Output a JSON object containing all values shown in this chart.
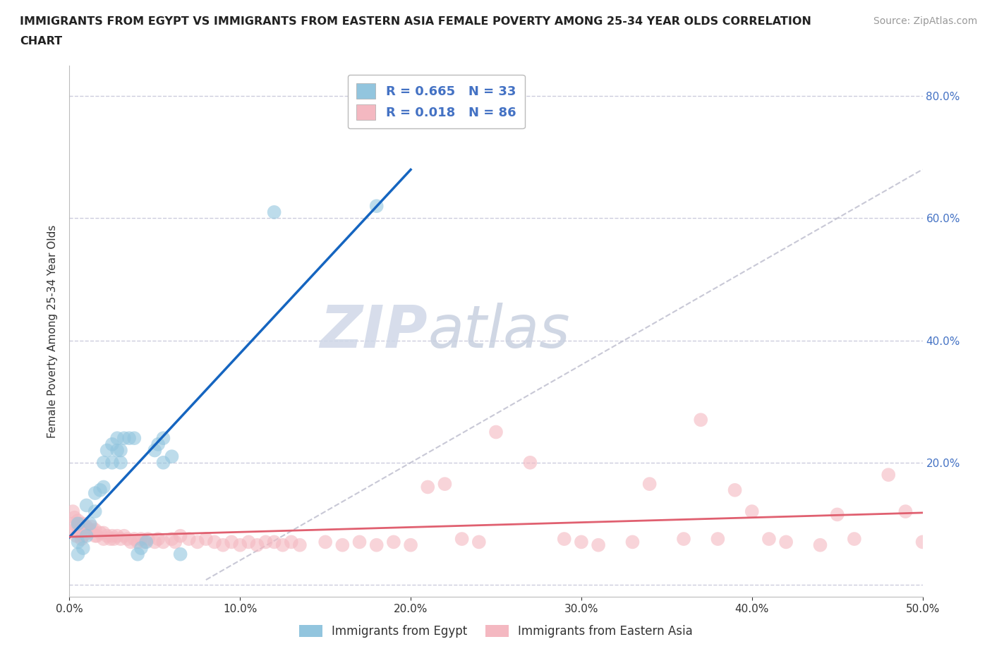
{
  "title_line1": "IMMIGRANTS FROM EGYPT VS IMMIGRANTS FROM EASTERN ASIA FEMALE POVERTY AMONG 25-34 YEAR OLDS CORRELATION",
  "title_line2": "CHART",
  "source_text": "Source: ZipAtlas.com",
  "ylabel": "Female Poverty Among 25-34 Year Olds",
  "xlim": [
    0.0,
    0.5
  ],
  "ylim": [
    -0.02,
    0.85
  ],
  "xticks": [
    0.0,
    0.1,
    0.2,
    0.3,
    0.4,
    0.5
  ],
  "xticklabels": [
    "0.0%",
    "10.0%",
    "20.0%",
    "30.0%",
    "40.0%",
    "50.0%"
  ],
  "yticks": [
    0.0,
    0.2,
    0.4,
    0.6,
    0.8
  ],
  "yticklabels_right": [
    "",
    "20.0%",
    "40.0%",
    "60.0%",
    "80.0%"
  ],
  "egypt_color": "#92C5DE",
  "eastern_asia_color": "#F4B8C1",
  "egypt_R": 0.665,
  "egypt_N": 33,
  "eastern_asia_R": 0.018,
  "eastern_asia_N": 86,
  "right_axis_color": "#4472C4",
  "egypt_line_color": "#1565C0",
  "eastern_asia_line_color": "#E06070",
  "diagonal_color": "#BBBBCC",
  "watermark_zip": "ZIP",
  "watermark_atlas": "atlas",
  "egypt_x": [
    0.005,
    0.005,
    0.005,
    0.008,
    0.01,
    0.01,
    0.012,
    0.015,
    0.015,
    0.018,
    0.02,
    0.02,
    0.022,
    0.025,
    0.025,
    0.028,
    0.028,
    0.03,
    0.03,
    0.032,
    0.035,
    0.038,
    0.04,
    0.042,
    0.045,
    0.05,
    0.052,
    0.055,
    0.055,
    0.06,
    0.065,
    0.12,
    0.18
  ],
  "egypt_y": [
    0.05,
    0.07,
    0.1,
    0.06,
    0.08,
    0.13,
    0.1,
    0.12,
    0.15,
    0.155,
    0.16,
    0.2,
    0.22,
    0.2,
    0.23,
    0.22,
    0.24,
    0.2,
    0.22,
    0.24,
    0.24,
    0.24,
    0.05,
    0.06,
    0.07,
    0.22,
    0.23,
    0.24,
    0.2,
    0.21,
    0.05,
    0.61,
    0.62
  ],
  "eastern_asia_x": [
    0.002,
    0.003,
    0.004,
    0.005,
    0.006,
    0.007,
    0.008,
    0.008,
    0.01,
    0.01,
    0.012,
    0.013,
    0.015,
    0.015,
    0.016,
    0.018,
    0.02,
    0.02,
    0.022,
    0.024,
    0.025,
    0.026,
    0.028,
    0.03,
    0.032,
    0.034,
    0.036,
    0.038,
    0.04,
    0.042,
    0.044,
    0.046,
    0.05,
    0.052,
    0.055,
    0.06,
    0.062,
    0.065,
    0.07,
    0.075,
    0.08,
    0.085,
    0.09,
    0.095,
    0.1,
    0.105,
    0.11,
    0.115,
    0.12,
    0.125,
    0.13,
    0.135,
    0.15,
    0.16,
    0.17,
    0.18,
    0.19,
    0.2,
    0.21,
    0.22,
    0.23,
    0.24,
    0.25,
    0.27,
    0.29,
    0.3,
    0.31,
    0.33,
    0.34,
    0.36,
    0.37,
    0.38,
    0.39,
    0.4,
    0.41,
    0.42,
    0.44,
    0.45,
    0.46,
    0.48,
    0.49,
    0.5,
    0.002,
    0.003,
    0.005,
    0.006
  ],
  "eastern_asia_y": [
    0.1,
    0.09,
    0.08,
    0.095,
    0.085,
    0.075,
    0.08,
    0.1,
    0.095,
    0.085,
    0.09,
    0.095,
    0.08,
    0.09,
    0.08,
    0.085,
    0.075,
    0.085,
    0.08,
    0.075,
    0.08,
    0.075,
    0.08,
    0.075,
    0.08,
    0.075,
    0.07,
    0.075,
    0.07,
    0.075,
    0.07,
    0.075,
    0.07,
    0.075,
    0.07,
    0.075,
    0.07,
    0.08,
    0.075,
    0.07,
    0.075,
    0.07,
    0.065,
    0.07,
    0.065,
    0.07,
    0.065,
    0.07,
    0.07,
    0.065,
    0.07,
    0.065,
    0.07,
    0.065,
    0.07,
    0.065,
    0.07,
    0.065,
    0.16,
    0.165,
    0.075,
    0.07,
    0.25,
    0.2,
    0.075,
    0.07,
    0.065,
    0.07,
    0.165,
    0.075,
    0.27,
    0.075,
    0.155,
    0.12,
    0.075,
    0.07,
    0.065,
    0.115,
    0.075,
    0.18,
    0.12,
    0.07,
    0.12,
    0.11,
    0.105,
    0.1
  ]
}
